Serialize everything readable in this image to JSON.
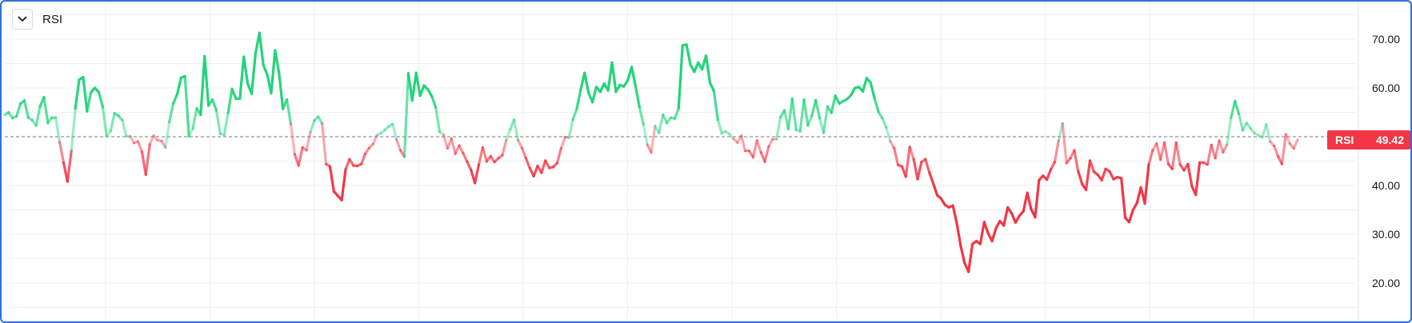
{
  "header": {
    "indicator": "RSI"
  },
  "colors": {
    "bull": "#22d47a",
    "bear": "#f23645",
    "badge": "#f23645",
    "grid": "#eef0f3",
    "frame": "#2f6fdc",
    "midline": "#787b86"
  },
  "badge": {
    "label": "RSI",
    "value": "49.42"
  },
  "chart_data": {
    "type": "line",
    "title": "",
    "ylabel": "",
    "xlabel": "",
    "ylim": [
      17.5,
      76.5
    ],
    "midline": 50,
    "yticks": [
      "70.00",
      "60.00",
      "50.00",
      "40.00",
      "30.00",
      "20.00"
    ],
    "grid": true,
    "series": [
      {
        "values": [
          54.5,
          55,
          53.8,
          54.2,
          56.8,
          57.4,
          53.9,
          53.4,
          52.3,
          56.2,
          58.1,
          52.8,
          53.9,
          53.9,
          48.9,
          44.7,
          40.8,
          47.1,
          55.8,
          61.7,
          62.2,
          55.2,
          59.1,
          60,
          59.1,
          56.1,
          50.1,
          51.2,
          54.8,
          54.3,
          53.4,
          50.1,
          50.1,
          48.7,
          49,
          46.9,
          42.2,
          48.4,
          50.2,
          49.3,
          49.1,
          47.8,
          53,
          56.8,
          58.7,
          62.1,
          62.4,
          50.1,
          51.7,
          55.8,
          54.5,
          66.5,
          56.4,
          57.6,
          55.4,
          50.6,
          50.4,
          54.9,
          59.8,
          57.8,
          57.8,
          66.4,
          60.9,
          58.8,
          67.1,
          71.3,
          64.7,
          62.7,
          58.9,
          67.7,
          63.1,
          55.7,
          57.6,
          52.6,
          46.4,
          44.1,
          47.8,
          47.2,
          50.9,
          53.3,
          54.1,
          52.7,
          44.4,
          43.9,
          38.8,
          37.9,
          37,
          43.3,
          45.4,
          44.1,
          44,
          44.4,
          46.5,
          47.7,
          48.5,
          50.3,
          50.7,
          51.4,
          52.1,
          52.6,
          49.4,
          47.2,
          45.9,
          63,
          57.4,
          63.1,
          58.4,
          60.5,
          59.7,
          58.3,
          56,
          51,
          50.4,
          47.6,
          49.6,
          46.5,
          48.2,
          46.6,
          44.9,
          43.2,
          40.5,
          44.3,
          47.8,
          44.9,
          46,
          44.8,
          45.6,
          46.2,
          49.3,
          51.5,
          53.5,
          49.3,
          47.7,
          45.6,
          43.6,
          41.9,
          44,
          42.6,
          45.1,
          43.6,
          43.8,
          44.6,
          47.6,
          49.9,
          49.8,
          53.5,
          55.7,
          59.6,
          63.1,
          59,
          57.1,
          60.2,
          59.2,
          60.9,
          59.5,
          65.2,
          59.2,
          60.6,
          60.3,
          61.5,
          64.3,
          60.4,
          56.1,
          52.6,
          48.4,
          46.8,
          52.2,
          50.8,
          54.5,
          52.8,
          53.9,
          53.7,
          55.8,
          68.7,
          68.9,
          64.8,
          63.3,
          65.2,
          63.8,
          66.6,
          61.1,
          59.4,
          53.5,
          50.7,
          51.1,
          50.5,
          49.6,
          48.8,
          50.2,
          47.1,
          47.1,
          45.8,
          49.2,
          46.8,
          44.9,
          48,
          49.5,
          49.5,
          54,
          55.4,
          51.6,
          57.8,
          51.4,
          51.1,
          57.6,
          52.3,
          54.3,
          57.5,
          53.8,
          50.8,
          56.2,
          54.9,
          58.4,
          56.8,
          57.3,
          57.7,
          58.5,
          60,
          60.2,
          59.3,
          62,
          61.1,
          57.9,
          55.1,
          53.8,
          51.9,
          49.1,
          47.7,
          44.2,
          43.9,
          41.8,
          47.9,
          45.4,
          41.3,
          44.8,
          45.4,
          42.7,
          40.4,
          38,
          37.3,
          36,
          35.5,
          35.9,
          32.3,
          27.6,
          24.1,
          22.3,
          28,
          28.6,
          28,
          32.5,
          30.2,
          28.6,
          31.2,
          32.7,
          31.8,
          35.5,
          34.3,
          32.4,
          33.8,
          34.7,
          38.5,
          35.1,
          33.5,
          41.1,
          42,
          41.2,
          43.3,
          44.8,
          49.2,
          52.7,
          44.6,
          45.6,
          47.2,
          42.9,
          40.3,
          39.1,
          45.1,
          42.8,
          42.2,
          41.1,
          43.4,
          42.9,
          41.3,
          41.7,
          41.5,
          33.4,
          32.5,
          35,
          36.4,
          39.6,
          36.3,
          44.3,
          47.2,
          48.6,
          45.3,
          48.8,
          44.4,
          43.4,
          48.8,
          44.3,
          43.1,
          44.4,
          39.9,
          38.1,
          44.7,
          44.7,
          44.3,
          48.3,
          45.6,
          49.2,
          46.8,
          48.4,
          53.9,
          57.3,
          54.7,
          51.3,
          52.8,
          51.7,
          50.7,
          50.3,
          49.9,
          52.5,
          49,
          48.1,
          46,
          44.4,
          50.5,
          48.6,
          47.6,
          49.4
        ]
      }
    ]
  }
}
